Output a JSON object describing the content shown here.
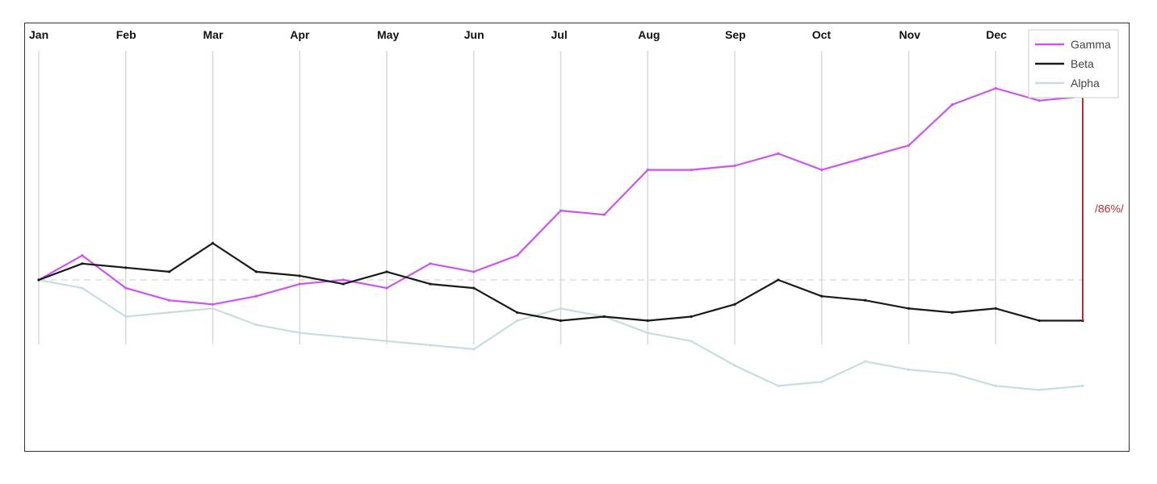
{
  "chart_data": {
    "type": "line",
    "x_ticks": [
      "Jan",
      "Feb",
      "Mar",
      "Apr",
      "May",
      "Jun",
      "Jul",
      "Aug",
      "Sep",
      "Oct",
      "Nov",
      "Dec"
    ],
    "x": [
      "Jan",
      "Jan",
      "Feb",
      "Feb",
      "Mar",
      "Mar",
      "Apr",
      "Apr",
      "May",
      "May",
      "Jun",
      "Jun",
      "Jul",
      "Jul",
      "Aug",
      "Aug",
      "Sep",
      "Sep",
      "Oct",
      "Oct",
      "Nov",
      "Nov",
      "Dec",
      "Dec",
      "Dec"
    ],
    "ylim": [
      -1.9,
      2.85
    ],
    "baseline": 0,
    "grid": "vertical",
    "legend_position": "top-right",
    "colors": {
      "Gamma": "#cc55ee",
      "Beta": "#1a1a1a",
      "Alpha": "#c8dde0",
      "annotation": "#b03030"
    },
    "series": [
      {
        "name": "Gamma",
        "values": [
          0,
          0.3,
          -0.1,
          -0.25,
          -0.3,
          -0.2,
          -0.05,
          0,
          -0.1,
          0.2,
          0.1,
          0.3,
          0.85,
          0.8,
          1.35,
          1.35,
          1.4,
          1.55,
          1.35,
          1.5,
          1.65,
          2.15,
          2.35,
          2.2,
          2.25
        ]
      },
      {
        "name": "Beta",
        "values": [
          0,
          0.2,
          0.15,
          0.1,
          0.45,
          0.1,
          0.05,
          -0.05,
          0.1,
          -0.05,
          -0.1,
          -0.4,
          -0.5,
          -0.45,
          -0.5,
          -0.45,
          -0.3,
          0,
          -0.2,
          -0.25,
          -0.35,
          -0.4,
          -0.35,
          -0.5,
          -0.5
        ]
      },
      {
        "name": "Alpha",
        "values": [
          0,
          -0.1,
          -0.45,
          -0.4,
          -0.35,
          -0.55,
          -0.65,
          -0.7,
          -0.75,
          -0.8,
          -0.85,
          -0.5,
          -0.35,
          -0.45,
          -0.65,
          -0.75,
          -1.05,
          -1.3,
          -1.25,
          -1.0,
          -1.1,
          -1.15,
          -1.3,
          -1.35,
          -1.3
        ]
      }
    ],
    "annotation": {
      "text": "/86%/",
      "series": "Gamma"
    }
  }
}
